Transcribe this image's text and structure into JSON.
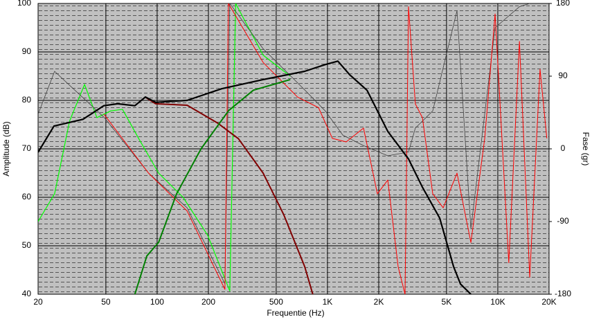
{
  "chart_data": {
    "type": "line",
    "xlabel": "Frequentie (Hz)",
    "ylabel": "Amplitude (dB)",
    "y2label": "Fase (gr)",
    "xscale": "log",
    "grid": true,
    "xlim": [
      20,
      20000
    ],
    "xticks": [
      20,
      50,
      100,
      200,
      500,
      {
        "value": 1000,
        "label": "1K"
      },
      {
        "value": 2000,
        "label": "2K"
      },
      {
        "value": 5000,
        "label": "5K"
      },
      {
        "value": 10000,
        "label": "10K"
      },
      {
        "value": 20000,
        "label": "20K"
      }
    ],
    "ylim": [
      40,
      100
    ],
    "yticks": [
      40,
      50,
      60,
      70,
      80,
      90,
      100
    ],
    "y2lim": [
      -180,
      180
    ],
    "y2ticks": [
      -180,
      -90,
      0,
      90,
      180
    ],
    "series": [
      {
        "color": "#00ff00",
        "width": 1.2,
        "axis": "y2",
        "x": [
          20,
          25,
          30.6,
          37.5,
          44.3,
          53.4,
          62.6,
          77.8,
          102,
          142,
          198,
          267,
          289,
          419,
          605
        ],
        "values": [
          -90,
          -55.7,
          34.3,
          79.7,
          38.6,
          47,
          48.9,
          13,
          -30,
          -60,
          -107,
          -176,
          180,
          116,
          90
        ]
      },
      {
        "color": "#404040",
        "width": 0.8,
        "axis": "y2",
        "x": [
          20,
          25,
          49,
          89,
          150,
          250,
          267,
          419,
          735,
          970,
          1230,
          1628,
          2260,
          2990,
          3280,
          4150,
          5760,
          6950,
          9640,
          13400,
          15400
        ],
        "values": [
          42.9,
          96,
          38.6,
          -30,
          -73,
          -167,
          180,
          124,
          73,
          47,
          17,
          4,
          -8.6,
          -4,
          25.7,
          47,
          171,
          -99,
          150,
          176,
          180
        ]
      },
      {
        "color": "#ff0000",
        "width": 1,
        "axis": "y2",
        "x": [
          48.7,
          89,
          150,
          250,
          262,
          419,
          668,
          886,
          1068,
          1288,
          1628,
          1964,
          2260,
          2600,
          2854,
          2990,
          3280,
          3610,
          4150,
          4780,
          5760,
          6950,
          8380,
          9640,
          11600,
          13400,
          15400,
          17700,
          19400
        ],
        "values": [
          42.9,
          -30,
          -77,
          -174,
          180,
          107,
          64,
          51,
          13,
          8.6,
          25.7,
          -55.7,
          -38.6,
          -146,
          -180,
          176,
          55.7,
          38.6,
          -55.7,
          -73,
          -30,
          -116,
          13,
          167,
          -141,
          133,
          -159,
          98.6,
          13
        ]
      },
      {
        "color": "#800000",
        "width": 2,
        "axis": "y",
        "x": [
          85,
          98,
          150,
          227,
          300,
          419,
          554,
          735,
          820
        ],
        "values": [
          80.7,
          79.3,
          79,
          75.3,
          72.1,
          65,
          56.4,
          45.7,
          40
        ]
      },
      {
        "color": "#008000",
        "width": 2,
        "axis": "y",
        "x": [
          74,
          87,
          102,
          130,
          181,
          263,
          367,
          605
        ],
        "values": [
          40,
          47.9,
          50.7,
          60.7,
          70,
          77.9,
          82.1,
          84.3
        ]
      },
      {
        "color": "#000000",
        "width": 2.2,
        "axis": "y",
        "x": [
          20,
          24.8,
          36.7,
          48.6,
          58.6,
          74,
          85.3,
          98.2,
          150,
          239,
          419,
          735,
          973,
          1151,
          1349,
          1706,
          2260,
          2992,
          3608,
          4560,
          5500,
          6040,
          6950
        ],
        "values": [
          69.3,
          74.7,
          76.1,
          78.9,
          79.3,
          78.9,
          80.7,
          79.6,
          80,
          82.4,
          84.3,
          86,
          87.4,
          88.1,
          85.3,
          82.1,
          73.6,
          67.9,
          62.1,
          55.7,
          45.7,
          42.1,
          40
        ]
      }
    ]
  }
}
